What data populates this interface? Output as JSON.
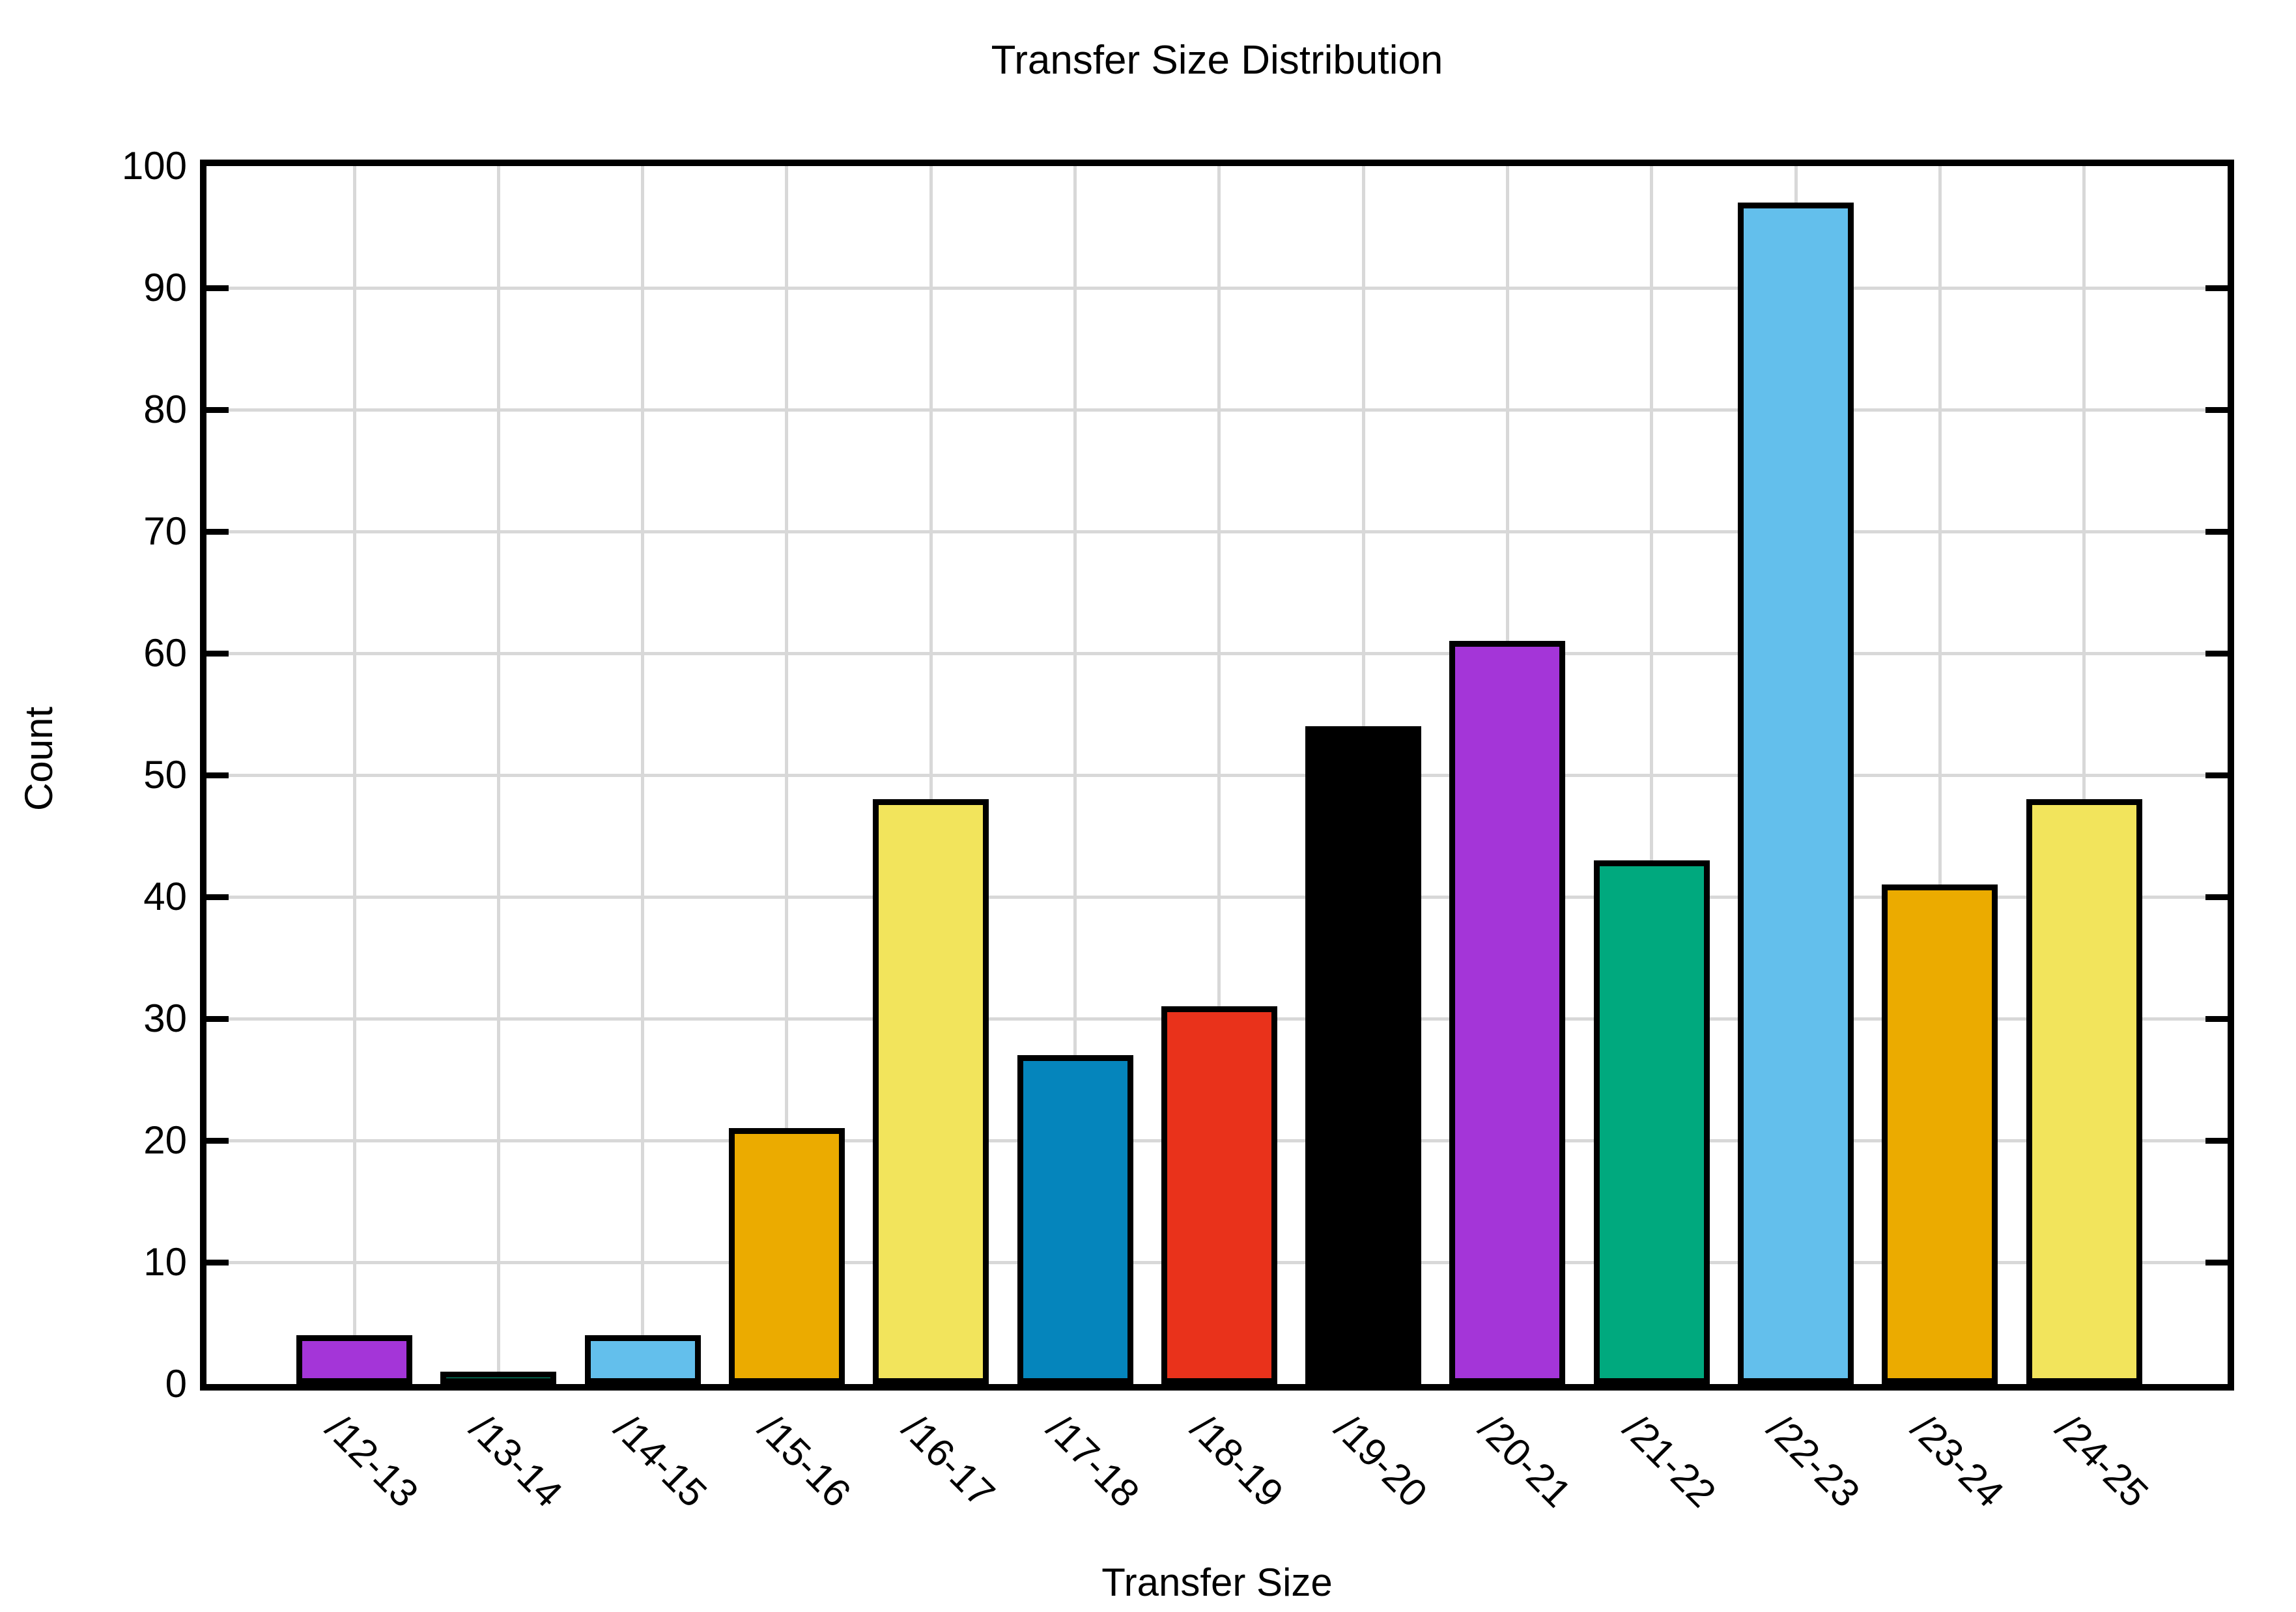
{
  "chart_data": {
    "type": "bar",
    "title": "Transfer Size Distribution",
    "xlabel": "Transfer Size",
    "ylabel": "Count",
    "categories": [
      "/12-13",
      "/13-14",
      "/14-15",
      "/15-16",
      "/16-17",
      "/17-18",
      "/18-19",
      "/19-20",
      "/20-21",
      "/21-22",
      "/22-23",
      "/23-24",
      "/24-25"
    ],
    "values": [
      4,
      1,
      4,
      21,
      48,
      27,
      31,
      54,
      61,
      43,
      97,
      41,
      48
    ],
    "bar_colors": [
      "#a435d8",
      "#00a97e",
      "#63bfec",
      "#ebab00",
      "#f2e45c",
      "#0585bc",
      "#e9321b",
      "#000000",
      "#a435d8",
      "#00a97e",
      "#63bfec",
      "#ebab00",
      "#f2e45c"
    ],
    "ylim": [
      0,
      100
    ],
    "ytick_interval": 10,
    "ytick_labels": [
      "0",
      "10",
      "20",
      "30",
      "40",
      "50",
      "60",
      "70",
      "80",
      "90",
      "100"
    ],
    "grid": true,
    "legend": "none",
    "x_tick_rotation": -45
  },
  "colors": {
    "axis": "#000000",
    "grid": "#d8d8d8",
    "background": "#ffffff",
    "bar_border": "#000000"
  }
}
